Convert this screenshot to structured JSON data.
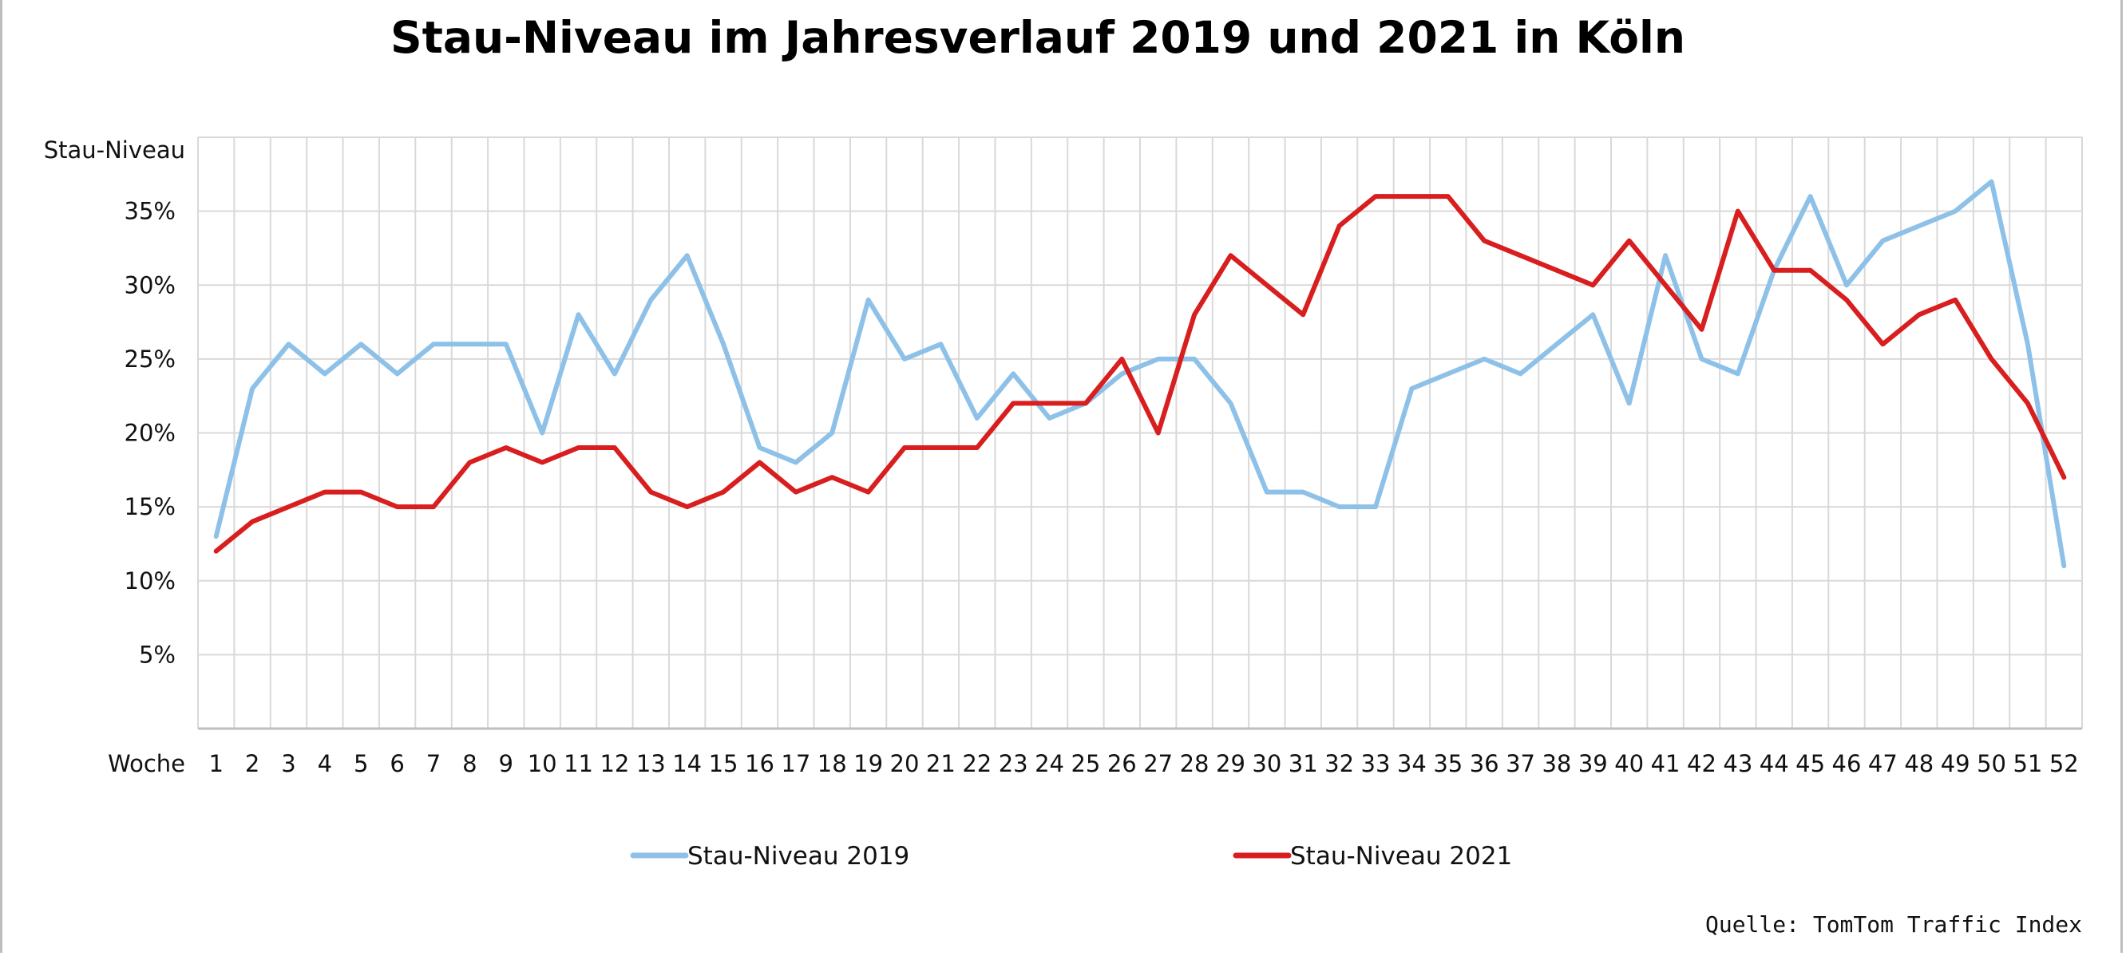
{
  "chart_data": {
    "type": "line",
    "title": "Stau-Niveau im Jahresverlauf 2019 und 2021 in Köln",
    "ylabel": "Stau-Niveau",
    "xlabel": "Woche",
    "ylim": [
      0,
      40
    ],
    "yticks": [
      5,
      10,
      15,
      20,
      25,
      30,
      35
    ],
    "ytick_labels": [
      "5%",
      "10%",
      "15%",
      "20%",
      "25%",
      "30%",
      "35%"
    ],
    "grid": true,
    "legend_position": "bottom",
    "x": [
      1,
      2,
      3,
      4,
      5,
      6,
      7,
      8,
      9,
      10,
      11,
      12,
      13,
      14,
      15,
      16,
      17,
      18,
      19,
      20,
      21,
      22,
      23,
      24,
      25,
      26,
      27,
      28,
      29,
      30,
      31,
      32,
      33,
      34,
      35,
      36,
      37,
      38,
      39,
      40,
      41,
      42,
      43,
      44,
      45,
      46,
      47,
      48,
      49,
      50,
      51,
      52
    ],
    "series": [
      {
        "name": "Stau-Niveau 2019",
        "color": "#8ec1e8",
        "values": [
          13,
          23,
          26,
          24,
          26,
          24,
          26,
          26,
          26,
          20,
          28,
          24,
          29,
          32,
          26,
          19,
          18,
          20,
          29,
          25,
          26,
          21,
          24,
          21,
          22,
          24,
          25,
          25,
          22,
          16,
          16,
          15,
          15,
          23,
          24,
          25,
          24,
          26,
          28,
          22,
          32,
          25,
          24,
          31,
          36,
          30,
          33,
          34,
          35,
          37,
          26,
          11
        ]
      },
      {
        "name": "Stau-Niveau 2021",
        "color": "#d81e1e",
        "values": [
          12,
          14,
          15,
          16,
          16,
          15,
          15,
          18,
          19,
          18,
          19,
          19,
          16,
          15,
          16,
          18,
          16,
          17,
          16,
          19,
          19,
          19,
          22,
          22,
          22,
          25,
          20,
          28,
          32,
          30,
          28,
          34,
          36,
          36,
          36,
          33,
          32,
          31,
          30,
          33,
          30,
          27,
          35,
          31,
          31,
          29,
          26,
          28,
          29,
          25,
          22,
          17
        ]
      }
    ],
    "source": "Quelle: TomTom Traffic Index"
  }
}
